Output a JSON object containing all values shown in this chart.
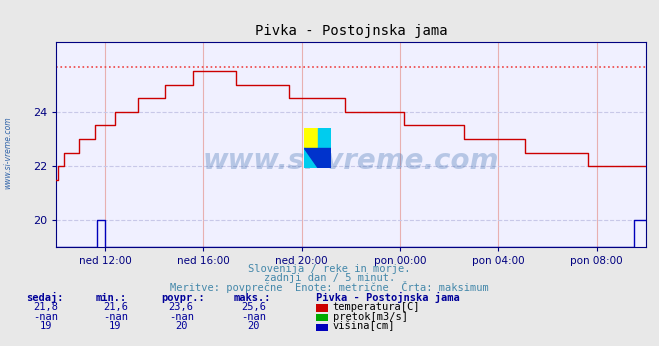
{
  "title": "Pivka - Postojnska jama",
  "bg_color": "#e8e8e8",
  "plot_bg_color": "#f0f0ff",
  "grid_color_v": "#e8b0b0",
  "grid_color_h": "#c8c8e8",
  "x_labels": [
    "ned 12:00",
    "ned 16:00",
    "ned 20:00",
    "pon 00:00",
    "pon 04:00",
    "pon 08:00"
  ],
  "x_ticks_idx": [
    24,
    72,
    120,
    168,
    216,
    264
  ],
  "total_points": 289,
  "ylim": [
    19.0,
    26.6
  ],
  "yticks": [
    20,
    22,
    24
  ],
  "tick_color": "#000080",
  "temp_color": "#cc0000",
  "height_color": "#0000bb",
  "pretok_color": "#00aa00",
  "max_line_color": "#ee4444",
  "max_value": 25.65,
  "text_info_1": "Slovenija / reke in morje.",
  "text_info_2": "zadnji dan / 5 minut.",
  "text_info_3": "Meritve: povprečne  Enote: metrične  Črta: maksimum",
  "footer_color": "#4488aa",
  "watermark_text": "www.si-vreme.com",
  "watermark_color": "#3366aa",
  "watermark_alpha": 0.3,
  "sidebar_text": "www.si-vreme.com",
  "sidebar_color": "#3366aa",
  "table_headers": [
    "sedaj:",
    "min.:",
    "povpr.:",
    "maks.:"
  ],
  "table_temp": [
    "21,8",
    "21,6",
    "23,6",
    "25,6"
  ],
  "table_pretok": [
    "-nan",
    "-nan",
    "-nan",
    "-nan"
  ],
  "table_visina": [
    "19",
    "19",
    "20",
    "20"
  ],
  "legend_title": "Pivka - Postojnska jama",
  "legend_items": [
    "temperatura[C]",
    "pretok[m3/s]",
    "višina[cm]"
  ],
  "legend_colors": [
    "#cc0000",
    "#00aa00",
    "#0000bb"
  ],
  "logo_yellow": "#ffff00",
  "logo_cyan": "#00ccee",
  "logo_blue": "#0033cc"
}
